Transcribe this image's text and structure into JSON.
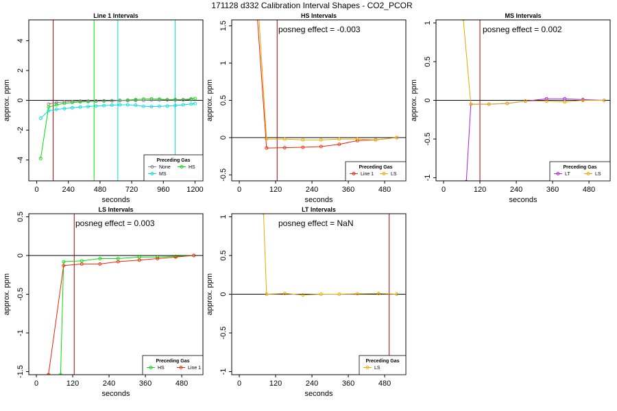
{
  "figure_title": "171128  d332   Calibration Interval Shapes - CO2_PCOR",
  "colors": {
    "None": "#808080",
    "HS": "#00e000",
    "MS": "#00dddd",
    "Line 1": "#ee2200",
    "LS": "#e6a800",
    "LT": "#a020f0",
    "vline_red": "#aa0000",
    "hline": "#000000"
  },
  "chart_data": [
    {
      "type": "line",
      "title": "Line 1 Intervals",
      "xlabel": "seconds",
      "ylabel": "approx. ppm",
      "xlim": [
        -60,
        1260
      ],
      "ylim": [
        -5.4,
        5.4
      ],
      "xticks": [
        0,
        240,
        480,
        720,
        960,
        1200
      ],
      "yticks": [
        -4,
        -2,
        0,
        2,
        4
      ],
      "hline": 0,
      "vlines": [
        {
          "x": 125,
          "color": "#aa0000"
        },
        {
          "x": 435,
          "color": "#00e000"
        },
        {
          "x": 615,
          "color": "#00dddd"
        },
        {
          "x": 1050,
          "color": "#00dddd"
        }
      ],
      "annotation": "",
      "legend": {
        "title": "Preceding Gas",
        "entries": [
          "None",
          "HS",
          "MS"
        ],
        "position": "bottom-right"
      },
      "series": [
        {
          "name": "HS",
          "color": "#00e000",
          "x": [
            30,
            90,
            150,
            210,
            270,
            330,
            390,
            450,
            510,
            570,
            630,
            690,
            750,
            810,
            870,
            930,
            990,
            1050,
            1110,
            1170,
            1200
          ],
          "y": [
            -3.9,
            -0.45,
            -0.3,
            -0.2,
            -0.15,
            -0.1,
            -0.08,
            -0.05,
            -0.05,
            -0.03,
            0.0,
            0.02,
            0.05,
            0.08,
            0.1,
            0.08,
            0.05,
            0.06,
            0.05,
            0.1,
            0.12
          ]
        },
        {
          "name": "MS",
          "color": "#00dddd",
          "x": [
            30,
            90,
            150,
            210,
            270,
            330,
            390,
            450,
            510,
            570,
            630,
            690,
            750,
            810,
            870,
            930,
            990,
            1050,
            1110,
            1170,
            1200
          ],
          "y": [
            -1.2,
            -0.7,
            -0.6,
            -0.55,
            -0.5,
            -0.45,
            -0.42,
            -0.38,
            -0.35,
            -0.32,
            -0.3,
            -0.3,
            -0.32,
            -0.4,
            -0.42,
            -0.4,
            -0.38,
            -0.35,
            -0.3,
            -0.25,
            -0.22
          ]
        },
        {
          "name": "None",
          "color": "#808080",
          "x": [
            90,
            150,
            210,
            270,
            330,
            390,
            450,
            510,
            570,
            630,
            690,
            750,
            810,
            870,
            930,
            990,
            1050,
            1110,
            1170
          ],
          "y": [
            -0.25,
            -0.15,
            -0.1,
            -0.08,
            -0.05,
            -0.05,
            -0.05,
            -0.03,
            -0.03,
            -0.02,
            -0.02,
            0.0,
            0.0,
            0.02,
            0.02,
            0.03,
            0.02,
            0.03,
            0.05
          ]
        }
      ]
    },
    {
      "type": "line",
      "title": "HS Intervals",
      "xlabel": "seconds",
      "ylabel": "approx. ppm",
      "xlim": [
        -25,
        550
      ],
      "ylim": [
        -0.58,
        1.58
      ],
      "xticks": [
        0,
        120,
        240,
        360,
        480
      ],
      "yticks": [
        -0.5,
        0.0,
        0.5,
        1.0,
        1.5
      ],
      "hline": 0,
      "vlines": [
        {
          "x": 125,
          "color": "#aa0000"
        }
      ],
      "annotation": "posneg effect = -0.003",
      "legend": {
        "title": "Preceding Gas",
        "entries": [
          "Line 1",
          "LS"
        ],
        "position": "bottom-right"
      },
      "series": [
        {
          "name": "Line 1",
          "color": "#ee2200",
          "x": [
            60,
            90,
            150,
            210,
            270,
            330,
            390,
            450,
            520
          ],
          "y": [
            1.6,
            -0.14,
            -0.135,
            -0.13,
            -0.12,
            -0.09,
            -0.04,
            -0.03,
            0.0
          ]
        },
        {
          "name": "LS",
          "color": "#e6a800",
          "x": [
            65,
            90,
            150,
            210,
            270,
            330,
            390,
            450,
            520
          ],
          "y": [
            1.6,
            -0.02,
            -0.02,
            -0.03,
            -0.03,
            -0.02,
            -0.02,
            -0.03,
            0.0
          ]
        }
      ]
    },
    {
      "type": "line",
      "title": "MS Intervals",
      "xlabel": "seconds",
      "ylabel": "approx. ppm",
      "xlim": [
        -25,
        550
      ],
      "ylim": [
        -1.04,
        1.04
      ],
      "xticks": [
        0,
        120,
        240,
        360,
        480
      ],
      "yticks": [
        -1.0,
        -0.5,
        0.0,
        0.5,
        1.0
      ],
      "hline": 0,
      "vlines": [
        {
          "x": 120,
          "color": "#aa0000"
        }
      ],
      "annotation": "posneg effect = 0.002",
      "legend": {
        "title": "Preceding Gas",
        "entries": [
          "LT",
          "LS"
        ],
        "position": "bottom-right"
      },
      "series": [
        {
          "name": "LT",
          "color": "#a020f0",
          "x": [
            75,
            90,
            150,
            210,
            270,
            340,
            400,
            460,
            530
          ],
          "y": [
            -1.05,
            -0.05,
            -0.05,
            -0.04,
            -0.01,
            0.02,
            0.02,
            0.01,
            0.0
          ]
        },
        {
          "name": "LS",
          "color": "#e6a800",
          "x": [
            65,
            90,
            150,
            210,
            270,
            340,
            400,
            460,
            530
          ],
          "y": [
            1.05,
            -0.05,
            -0.05,
            -0.04,
            -0.01,
            -0.01,
            -0.02,
            0.0,
            0.0
          ]
        }
      ]
    },
    {
      "type": "line",
      "title": "LS Intervals",
      "xlabel": "seconds",
      "ylabel": "approx. ppm",
      "xlim": [
        -25,
        550
      ],
      "ylim": [
        -1.54,
        0.54
      ],
      "xticks": [
        0,
        120,
        240,
        360,
        480
      ],
      "yticks": [
        -1.5,
        -1.0,
        -0.5,
        0.0,
        0.5
      ],
      "hline": 0,
      "vlines": [
        {
          "x": 125,
          "color": "#aa0000"
        }
      ],
      "annotation": "posneg effect = 0.003",
      "legend": {
        "title": "Preceding Gas",
        "entries": [
          "HS",
          "Line 1"
        ],
        "position": "bottom-right"
      },
      "series": [
        {
          "name": "HS",
          "color": "#00e000",
          "x": [
            80,
            90,
            150,
            210,
            270,
            340,
            400,
            460,
            520
          ],
          "y": [
            -1.54,
            -0.08,
            -0.07,
            -0.04,
            -0.04,
            -0.02,
            -0.02,
            -0.01,
            0.0
          ]
        },
        {
          "name": "Line 1",
          "color": "#ee2200",
          "x": [
            40,
            90,
            150,
            210,
            270,
            340,
            400,
            460,
            520
          ],
          "y": [
            -1.54,
            -0.13,
            -0.11,
            -0.11,
            -0.08,
            -0.06,
            -0.04,
            -0.02,
            0.0
          ]
        }
      ]
    },
    {
      "type": "line",
      "title": "LT Intervals",
      "xlabel": "seconds",
      "ylabel": "approx. ppm",
      "xlim": [
        -25,
        550
      ],
      "ylim": [
        -1.04,
        1.04
      ],
      "xticks": [
        0,
        120,
        240,
        360,
        480
      ],
      "yticks": [
        -1.0,
        -0.5,
        0.0,
        0.5,
        1.0
      ],
      "hline": 0,
      "vlines": [
        {
          "x": 495,
          "color": "#aa0000"
        }
      ],
      "annotation": "posneg effect = NaN",
      "legend": {
        "title": "Preceding Gas",
        "entries": [
          "LS"
        ],
        "position": "bottom-right"
      },
      "series": [
        {
          "name": "LS",
          "color": "#e6a800",
          "x": [
            80,
            90,
            150,
            210,
            270,
            330,
            390,
            460,
            520
          ],
          "y": [
            1.05,
            0.0,
            0.01,
            -0.01,
            0.0,
            0.0,
            0.005,
            0.01,
            0.0
          ]
        }
      ]
    }
  ]
}
